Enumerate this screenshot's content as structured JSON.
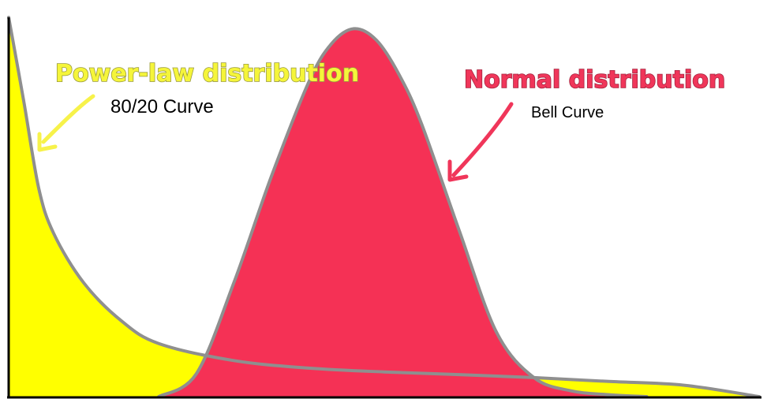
{
  "colors": {
    "power_law_fill": "#ffff00",
    "normal_fill": "#f53155",
    "curve_outline": "#8f8f8f",
    "axis": "#000000",
    "power_law_arrow": "#f7f24a",
    "normal_arrow": "#f0365a"
  },
  "chart_data": {
    "type": "area",
    "title": "",
    "xlabel": "",
    "ylabel": "",
    "grid": false,
    "series": [
      {
        "name": "Power-law distribution",
        "subtitle": "80/20 Curve",
        "x": [
          0,
          0.02,
          0.04,
          0.06,
          0.1,
          0.15,
          0.2,
          0.3,
          0.4,
          0.5,
          0.6,
          0.7,
          0.8,
          0.9,
          1.0
        ],
        "y": [
          1.0,
          0.78,
          0.55,
          0.43,
          0.3,
          0.2,
          0.14,
          0.095,
          0.075,
          0.065,
          0.058,
          0.05,
          0.04,
          0.03,
          0.0
        ]
      },
      {
        "name": "Normal distribution",
        "subtitle": "Bell Curve",
        "x": [
          0.2,
          0.25,
          0.3,
          0.35,
          0.4,
          0.43,
          0.46,
          0.49,
          0.52,
          0.55,
          0.6,
          0.65,
          0.7,
          0.75,
          0.8,
          0.85
        ],
        "y": [
          0.0,
          0.06,
          0.3,
          0.58,
          0.83,
          0.93,
          0.97,
          0.94,
          0.85,
          0.72,
          0.44,
          0.17,
          0.05,
          0.015,
          0.005,
          0.0
        ]
      }
    ],
    "annotations": {
      "power_law_title": "Power-law distribution",
      "power_law_subtitle": "80/20 Curve",
      "normal_title": "Normal distribution",
      "normal_subtitle": "Bell Curve"
    }
  }
}
